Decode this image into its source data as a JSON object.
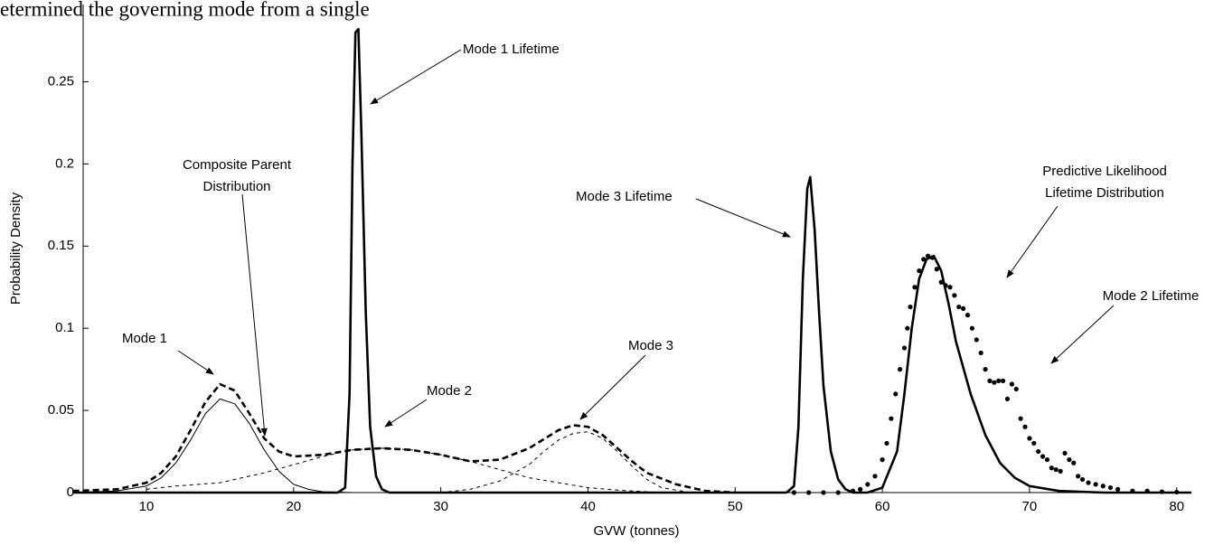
{
  "chart_data": {
    "type": "line",
    "leading_text": "etermined the governing mode from a single",
    "x_label": "GVW (tonnes)",
    "y_label": "Probability Density",
    "xlim": [
      5.7,
      81
    ],
    "ylim": [
      0,
      0.297
    ],
    "xticks": [
      10,
      20,
      30,
      40,
      50,
      60,
      70,
      80
    ],
    "yticks": [
      0,
      0.05,
      0.1,
      0.15,
      0.2,
      0.25
    ],
    "annotations": [
      {
        "lines": [
          "Mode 1 Lifetime"
        ]
      },
      {
        "lines": [
          "Composite Parent",
          "Distribution"
        ]
      },
      {
        "lines": [
          "Mode 1"
        ]
      },
      {
        "lines": [
          "Mode 2"
        ]
      },
      {
        "lines": [
          "Mode 3"
        ]
      },
      {
        "lines": [
          "Mode 3 Lifetime"
        ]
      },
      {
        "lines": [
          "Predictive Likelihood",
          "Lifetime Distribution"
        ]
      },
      {
        "lines": [
          "Mode 2 Lifetime"
        ]
      }
    ],
    "series": [
      {
        "color": "#000000",
        "style": "solid",
        "width": 1,
        "x": [
          5,
          8,
          10,
          11,
          12,
          13,
          14,
          15,
          16,
          17,
          18,
          19,
          20,
          21,
          22,
          24
        ],
        "values": [
          0,
          0.001,
          0.004,
          0.009,
          0.018,
          0.032,
          0.048,
          0.057,
          0.054,
          0.042,
          0.026,
          0.013,
          0.005,
          0.002,
          0.0005,
          0
        ]
      },
      {
        "color": "#000000",
        "style": "dashed",
        "width": 1,
        "x": [
          10,
          12,
          15,
          18,
          20,
          22,
          24,
          26,
          28,
          30,
          32,
          34,
          36,
          38,
          40,
          42,
          45
        ],
        "values": [
          0.002,
          0.004,
          0.006,
          0.012,
          0.017,
          0.022,
          0.026,
          0.027,
          0.026,
          0.023,
          0.019,
          0.014,
          0.009,
          0.006,
          0.003,
          0.0015,
          0
        ]
      },
      {
        "color": "#000000",
        "style": "dashed",
        "width": 1,
        "x": [
          30,
          32,
          34,
          36,
          37,
          38,
          39,
          40,
          41,
          42,
          43,
          44,
          45,
          47
        ],
        "values": [
          0,
          0.002,
          0.007,
          0.017,
          0.025,
          0.032,
          0.036,
          0.037,
          0.033,
          0.025,
          0.016,
          0.008,
          0.003,
          0
        ]
      },
      {
        "color": "#000000",
        "style": "dashed",
        "width": 2.6,
        "x": [
          5,
          8,
          10,
          11,
          12,
          13,
          14,
          15,
          16,
          17,
          18,
          19,
          20,
          22,
          24,
          26,
          28,
          30,
          32,
          34,
          36,
          38,
          39,
          40,
          41,
          42,
          43,
          44,
          46,
          48,
          50
        ],
        "values": [
          0.001,
          0.002,
          0.006,
          0.012,
          0.022,
          0.038,
          0.055,
          0.066,
          0.062,
          0.048,
          0.033,
          0.025,
          0.022,
          0.023,
          0.026,
          0.027,
          0.026,
          0.023,
          0.019,
          0.02,
          0.027,
          0.038,
          0.041,
          0.04,
          0.035,
          0.027,
          0.019,
          0.012,
          0.005,
          0.001,
          0
        ]
      },
      {
        "color": "#000000",
        "style": "solid",
        "width": 2.6,
        "x": [
          5,
          23,
          23.5,
          23.8,
          24,
          24.2,
          24.4,
          24.6,
          24.9,
          25.2,
          25.6,
          26,
          26.5,
          53.5
        ],
        "values": [
          0,
          0,
          0.003,
          0.06,
          0.2,
          0.28,
          0.282,
          0.22,
          0.11,
          0.04,
          0.01,
          0.002,
          0,
          0
        ]
      },
      {
        "color": "#000000",
        "style": "solid",
        "width": 2.6,
        "x": [
          53.5,
          54,
          54.3,
          54.6,
          54.9,
          55.1,
          55.4,
          55.7,
          56,
          56.5,
          57,
          57.5,
          58,
          59
        ],
        "values": [
          0,
          0.004,
          0.04,
          0.13,
          0.185,
          0.192,
          0.16,
          0.11,
          0.065,
          0.025,
          0.008,
          0.002,
          0,
          0
        ]
      },
      {
        "color": "#000000",
        "style": "solid",
        "width": 2.6,
        "x": [
          59,
          60,
          61,
          61.5,
          62,
          62.5,
          63,
          63.5,
          64,
          64.5,
          65,
          66,
          67,
          68,
          69,
          70,
          72,
          75,
          81
        ],
        "values": [
          0,
          0.003,
          0.025,
          0.06,
          0.1,
          0.13,
          0.142,
          0.144,
          0.135,
          0.115,
          0.092,
          0.06,
          0.035,
          0.018,
          0.009,
          0.004,
          0.001,
          0,
          0
        ]
      },
      {
        "color": "#000000",
        "style": "dots",
        "width": 2.6,
        "x": [
          54,
          55,
          56,
          57,
          58,
          58.5,
          59,
          59.5,
          60,
          60.3,
          60.6,
          60.9,
          61.2,
          61.5,
          61.7,
          61.9,
          62.2,
          62.5,
          62.8,
          63.1,
          63.4,
          63.7,
          64,
          64.3,
          64.6,
          64.9,
          65.2,
          65.5,
          65.8,
          66.1,
          66.4,
          66.7,
          67,
          67.3,
          67.6,
          67.9,
          68.2,
          68.5,
          68.8,
          69.1,
          69.4,
          69.7,
          70,
          70.3,
          70.6,
          70.9,
          71.2,
          71.5,
          71.8,
          72.1,
          72.4,
          72.7,
          73,
          73.3,
          73.6,
          74,
          74.5,
          75,
          75.5,
          76,
          77,
          78,
          79,
          80
        ],
        "values": [
          0,
          0,
          0,
          0,
          0.001,
          0.002,
          0.005,
          0.01,
          0.02,
          0.03,
          0.045,
          0.06,
          0.075,
          0.088,
          0.1,
          0.113,
          0.125,
          0.135,
          0.142,
          0.144,
          0.143,
          0.136,
          0.128,
          0.126,
          0.125,
          0.12,
          0.113,
          0.112,
          0.108,
          0.1,
          0.093,
          0.085,
          0.075,
          0.068,
          0.067,
          0.068,
          0.068,
          0.057,
          0.066,
          0.063,
          0.045,
          0.04,
          0.033,
          0.03,
          0.025,
          0.022,
          0.02,
          0.015,
          0.014,
          0.013,
          0.024,
          0.02,
          0.018,
          0.01,
          0.008,
          0.006,
          0.005,
          0.004,
          0.003,
          0.002,
          0.001,
          0.001,
          0.0005,
          0.0003
        ]
      }
    ]
  }
}
